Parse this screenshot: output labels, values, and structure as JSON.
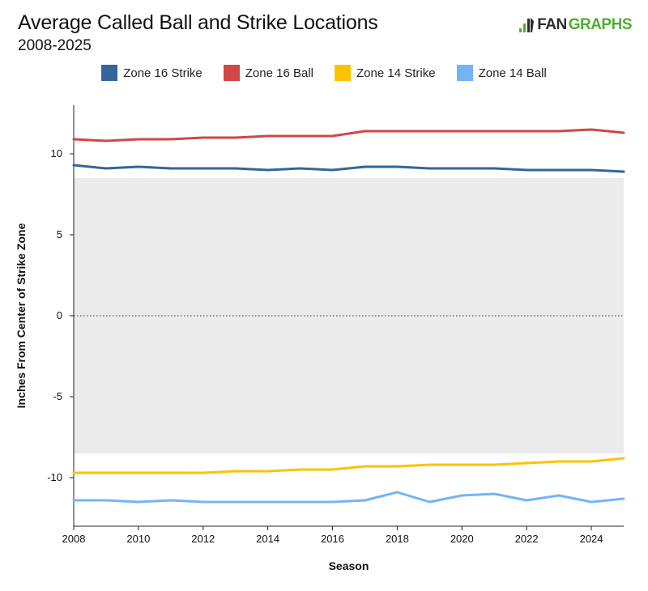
{
  "header": {
    "title": "Average Called Ball and Strike Locations",
    "subtitle": "2008-2025",
    "brand_prefix": "FAN",
    "brand_suffix": "GRAPHS"
  },
  "colors": {
    "zone16_strike": "#336699",
    "zone16_ball": "#d04747",
    "zone14_strike": "#fcc300",
    "zone14_ball": "#73b4f7",
    "strike_zone_fill": "#ebebeb",
    "brand_green": "#4fae32"
  },
  "chart_data": {
    "type": "line",
    "title": "Average Called Ball and Strike Locations",
    "subtitle": "2008-2025",
    "xlabel": "Season",
    "ylabel": "Inches From Center of Strike Zone",
    "xlim": [
      2008,
      2025
    ],
    "ylim": [
      -13,
      13
    ],
    "x_ticks": [
      2008,
      2010,
      2012,
      2014,
      2016,
      2018,
      2020,
      2022,
      2024
    ],
    "y_ticks": [
      -10,
      -5,
      0,
      5,
      10
    ],
    "strike_zone_band": [
      -8.5,
      8.5
    ],
    "zero_line": 0,
    "grid": false,
    "legend_position": "top",
    "x": [
      2008,
      2009,
      2010,
      2011,
      2012,
      2013,
      2014,
      2015,
      2016,
      2017,
      2018,
      2019,
      2020,
      2021,
      2022,
      2023,
      2024,
      2025
    ],
    "series": [
      {
        "name": "Zone 16 Strike",
        "color_key": "zone16_strike",
        "values": [
          9.3,
          9.1,
          9.2,
          9.1,
          9.1,
          9.1,
          9.0,
          9.1,
          9.0,
          9.2,
          9.2,
          9.1,
          9.1,
          9.1,
          9.0,
          9.0,
          9.0,
          8.9
        ]
      },
      {
        "name": "Zone 16 Ball",
        "color_key": "zone16_ball",
        "values": [
          10.9,
          10.8,
          10.9,
          10.9,
          11.0,
          11.0,
          11.1,
          11.1,
          11.1,
          11.4,
          11.4,
          11.4,
          11.4,
          11.4,
          11.4,
          11.4,
          11.5,
          11.3
        ]
      },
      {
        "name": "Zone 14 Strike",
        "color_key": "zone14_strike",
        "values": [
          -9.7,
          -9.7,
          -9.7,
          -9.7,
          -9.7,
          -9.6,
          -9.6,
          -9.5,
          -9.5,
          -9.3,
          -9.3,
          -9.2,
          -9.2,
          -9.2,
          -9.1,
          -9.0,
          -9.0,
          -8.8
        ]
      },
      {
        "name": "Zone 14 Ball",
        "color_key": "zone14_ball",
        "values": [
          -11.4,
          -11.4,
          -11.5,
          -11.4,
          -11.5,
          -11.5,
          -11.5,
          -11.5,
          -11.5,
          -11.4,
          -10.9,
          -11.5,
          -11.1,
          -11.0,
          -11.4,
          -11.1,
          -11.5,
          -11.3
        ]
      }
    ]
  }
}
